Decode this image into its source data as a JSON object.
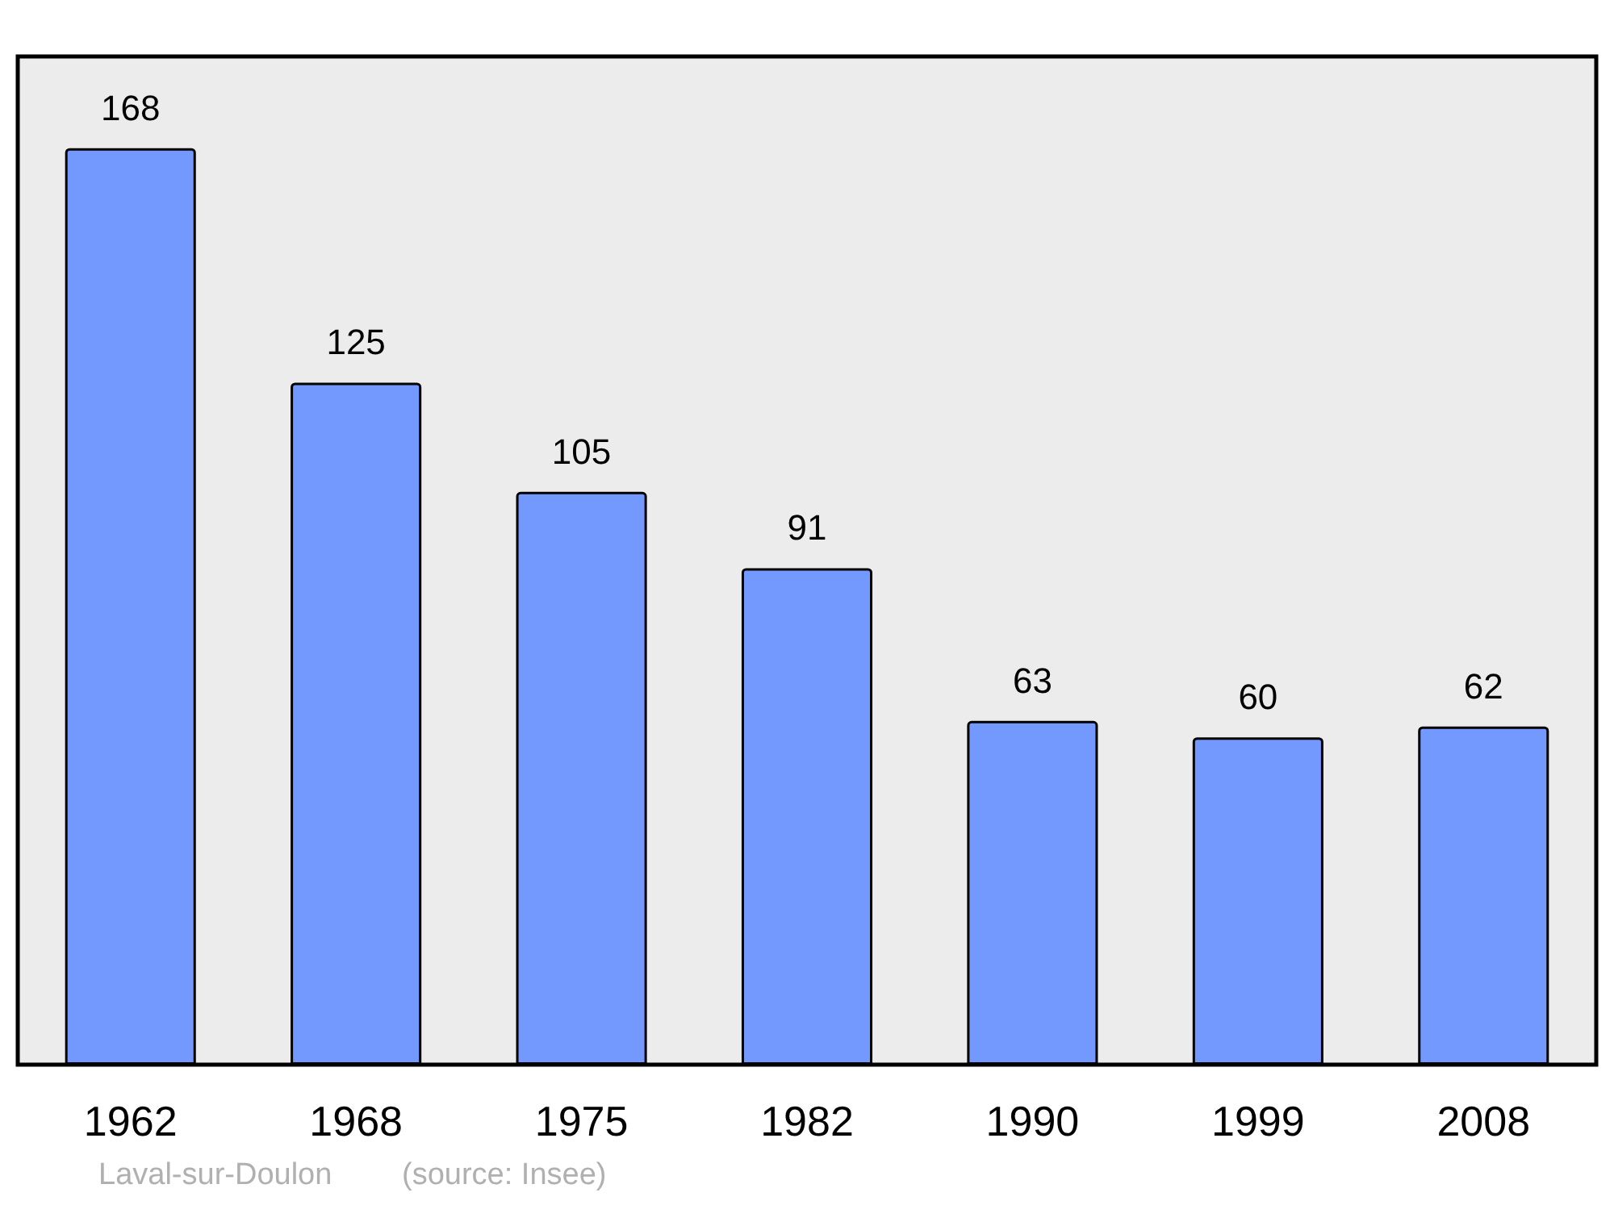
{
  "chart_data": {
    "type": "bar",
    "categories": [
      "1962",
      "1968",
      "1975",
      "1982",
      "1990",
      "1999",
      "2008"
    ],
    "values": [
      168,
      125,
      105,
      91,
      63,
      60,
      62
    ],
    "color": "#7399ff",
    "data_labels": true,
    "grid": false,
    "annotations": [
      "Laval-sur-Doulon",
      "(source: Insee)"
    ]
  }
}
